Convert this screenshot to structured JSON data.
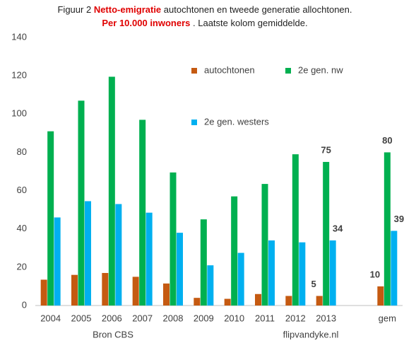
{
  "chart_data": {
    "type": "bar",
    "title_parts": [
      "Figuur 2",
      "Netto-emigratie",
      "autochtonen en tweede generatie allochtonen.",
      "Per 10.000 inwoners",
      ". Laatste kolom gemiddelde."
    ],
    "footer": [
      "Bron CBS",
      "flipvandyke.nl"
    ],
    "categories": [
      "2004",
      "2005",
      "2006",
      "2007",
      "2008",
      "2009",
      "2010",
      "2011",
      "2012",
      "2013",
      null,
      "gem"
    ],
    "series": [
      {
        "name": "autochtonen",
        "color": "#c55a11",
        "values": [
          13.5,
          16,
          17,
          15,
          11.5,
          4,
          3.5,
          6,
          5,
          5,
          null,
          10
        ],
        "value_labels": [
          null,
          null,
          null,
          null,
          null,
          null,
          null,
          null,
          null,
          "5",
          null,
          "10"
        ]
      },
      {
        "name": "2e gen. nw",
        "color": "#00b050",
        "values": [
          91,
          107,
          119.5,
          97,
          69.5,
          45,
          57,
          63.5,
          79,
          75,
          null,
          80
        ],
        "value_labels": [
          null,
          null,
          null,
          null,
          null,
          null,
          null,
          null,
          null,
          "75",
          null,
          "80"
        ]
      },
      {
        "name": "2e gen. westers",
        "color": "#00b0f0",
        "values": [
          46,
          54.5,
          53,
          48.5,
          38,
          21,
          27.5,
          34,
          33,
          34,
          null,
          39
        ],
        "value_labels": [
          null,
          null,
          null,
          null,
          null,
          null,
          null,
          null,
          null,
          "34",
          null,
          "39"
        ]
      }
    ],
    "ylim": [
      0,
      140
    ],
    "yticks": [
      0,
      20,
      40,
      60,
      80,
      100,
      120,
      140
    ],
    "grid": false
  }
}
